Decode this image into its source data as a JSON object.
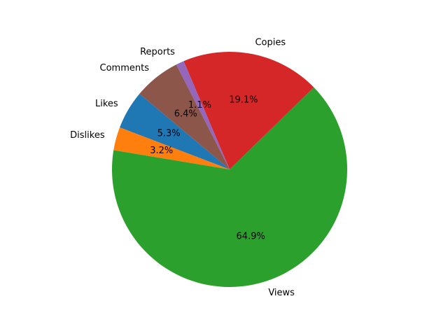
{
  "chart_data": {
    "type": "pie",
    "labels": [
      "Likes",
      "Dislikes",
      "Views",
      "Copies",
      "Reports",
      "Comments"
    ],
    "percent_labels": [
      "5.3%",
      "3.2%",
      "64.9%",
      "19.1%",
      "1.1%",
      "6.4%"
    ],
    "values": [
      5.3,
      3.2,
      64.9,
      19.1,
      1.1,
      6.4
    ],
    "colors": [
      "#1f77b4",
      "#ff7f0e",
      "#2ca02c",
      "#d62728",
      "#9467bd",
      "#8c564b"
    ],
    "start_angle_deg": 140,
    "direction": "counterclockwise"
  }
}
